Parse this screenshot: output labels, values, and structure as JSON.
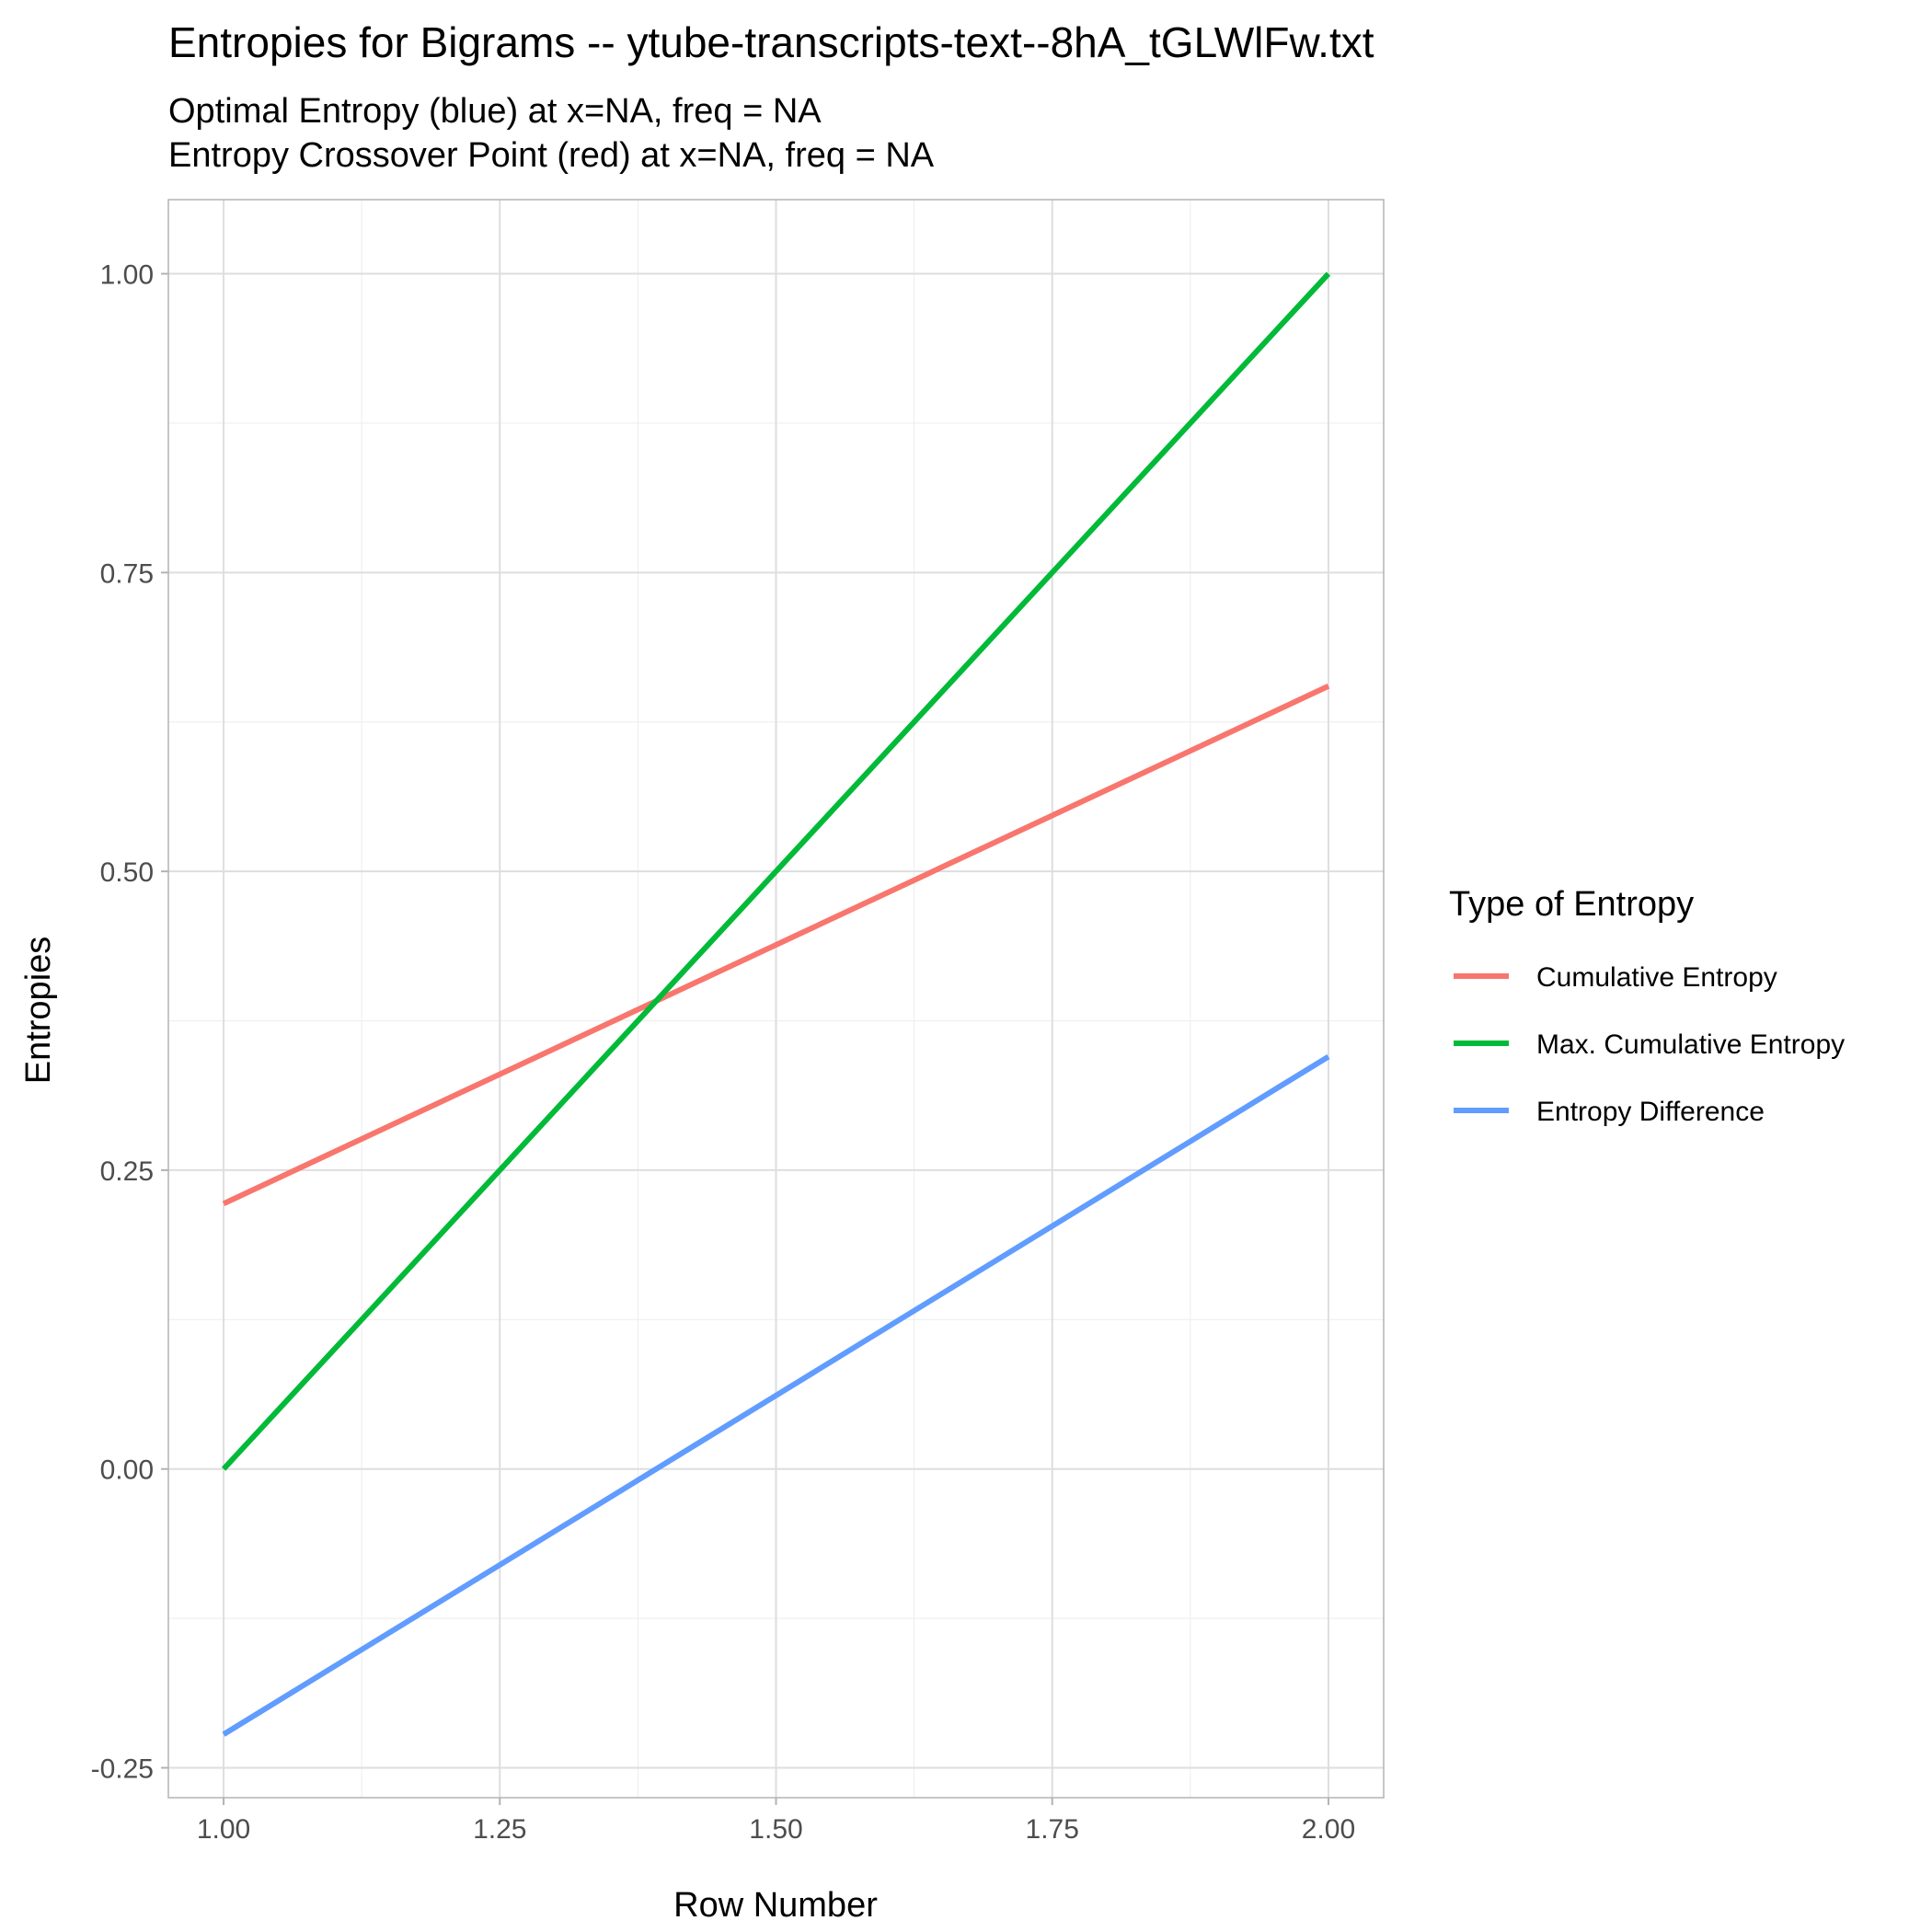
{
  "chart_data": {
    "type": "line",
    "title": "Entropies for Bigrams -- ytube-transcripts-text--8hA_tGLWlFw.txt",
    "subtitle_lines": [
      "Optimal Entropy (blue) at x=NA, freq = NA",
      "Entropy Crossover Point (red) at x=NA, freq = NA"
    ],
    "xlabel": "Row Number",
    "ylabel": "Entropies",
    "xlim": [
      0.95,
      2.05
    ],
    "ylim": [
      -0.275,
      1.062
    ],
    "x_ticks": [
      1.0,
      1.25,
      1.5,
      1.75,
      2.0
    ],
    "x_tick_labels": [
      "1.00",
      "1.25",
      "1.50",
      "1.75",
      "2.00"
    ],
    "y_ticks": [
      -0.25,
      0.0,
      0.25,
      0.5,
      0.75,
      1.0
    ],
    "y_tick_labels": [
      "-0.25",
      "0.00",
      "0.25",
      "0.50",
      "0.75",
      "1.00"
    ],
    "grid": true,
    "legend": {
      "title": "Type of Entropy",
      "position": "right"
    },
    "series": [
      {
        "name": "Cumulative Entropy",
        "color": "#F8766D",
        "x": [
          1,
          2
        ],
        "y": [
          0.222,
          0.655
        ]
      },
      {
        "name": "Max. Cumulative Entropy",
        "color": "#00BA38",
        "x": [
          1,
          2
        ],
        "y": [
          0.0,
          1.0
        ]
      },
      {
        "name": "Entropy Difference",
        "color": "#619CFF",
        "x": [
          1,
          2
        ],
        "y": [
          -0.222,
          0.345
        ]
      }
    ]
  }
}
